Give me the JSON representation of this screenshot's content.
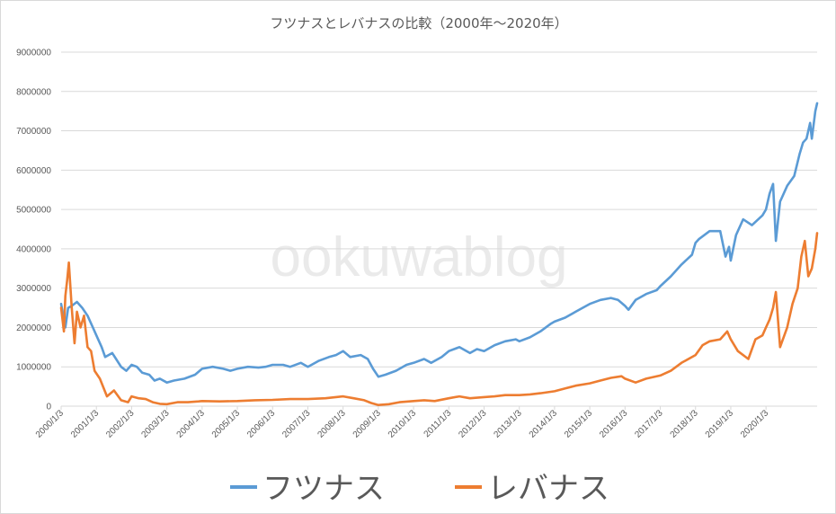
{
  "watermark": "ookuwablog",
  "chart_data": {
    "type": "line",
    "title": "フツナスとレバナスの比較（2000年～2020年）",
    "xlabel": "",
    "ylabel": "",
    "ylim": [
      0,
      9000000
    ],
    "yticks": [
      "0",
      "1000000",
      "2000000",
      "3000000",
      "4000000",
      "5000000",
      "6000000",
      "7000000",
      "8000000",
      "9000000"
    ],
    "yticks_values": [
      0,
      1000000,
      2000000,
      3000000,
      4000000,
      5000000,
      6000000,
      7000000,
      8000000,
      9000000
    ],
    "xlim": [
      2000.0,
      2021.45
    ],
    "xticks": [
      "2000/1/3",
      "2001/1/3",
      "2002/1/3",
      "2003/1/3",
      "2004/1/3",
      "2005/1/3",
      "2006/1/3",
      "2007/1/3",
      "2008/1/3",
      "2009/1/3",
      "2010/1/3",
      "2011/1/3",
      "2012/1/3",
      "2013/1/3",
      "2014/1/3",
      "2015/1/3",
      "2016/1/3",
      "2017/1/3",
      "2018/1/3",
      "2019/1/3",
      "2020/1/3"
    ],
    "grid": true,
    "legend_position": "bottom",
    "series": [
      {
        "name": "フツナス",
        "color": "#5b9bd5",
        "x": [
          2000.0,
          2000.12,
          2000.2,
          2000.3,
          2000.45,
          2000.6,
          2000.75,
          2000.9,
          2001.0,
          2001.15,
          2001.25,
          2001.45,
          2001.7,
          2001.85,
          2002.0,
          2002.15,
          2002.3,
          2002.5,
          2002.65,
          2002.8,
          2003.0,
          2003.2,
          2003.5,
          2003.8,
          2004.0,
          2004.3,
          2004.6,
          2004.8,
          2005.0,
          2005.3,
          2005.6,
          2005.8,
          2006.0,
          2006.3,
          2006.5,
          2006.8,
          2007.0,
          2007.3,
          2007.6,
          2007.8,
          2008.0,
          2008.2,
          2008.5,
          2008.7,
          2008.85,
          2009.0,
          2009.2,
          2009.5,
          2009.8,
          2010.0,
          2010.3,
          2010.5,
          2010.8,
          2011.0,
          2011.3,
          2011.6,
          2011.8,
          2012.0,
          2012.3,
          2012.6,
          2012.9,
          2013.0,
          2013.3,
          2013.6,
          2013.9,
          2014.0,
          2014.3,
          2014.6,
          2014.9,
          2015.0,
          2015.3,
          2015.6,
          2015.8,
          2016.0,
          2016.1,
          2016.3,
          2016.6,
          2016.9,
          2017.0,
          2017.3,
          2017.6,
          2017.9,
          2018.0,
          2018.1,
          2018.4,
          2018.7,
          2018.85,
          2018.95,
          2019.0,
          2019.15,
          2019.35,
          2019.6,
          2019.9,
          2020.0,
          2020.1,
          2020.2,
          2020.28,
          2020.4,
          2020.6,
          2020.8,
          2020.95,
          2021.05,
          2021.15,
          2021.25,
          2021.3,
          2021.4,
          2021.45
        ],
        "values": [
          2600000,
          2000000,
          2500000,
          2550000,
          2650000,
          2500000,
          2300000,
          2000000,
          1800000,
          1500000,
          1250000,
          1350000,
          1000000,
          900000,
          1050000,
          1000000,
          850000,
          800000,
          650000,
          700000,
          600000,
          650000,
          700000,
          800000,
          950000,
          1000000,
          950000,
          900000,
          950000,
          1000000,
          980000,
          1000000,
          1050000,
          1050000,
          1000000,
          1100000,
          1000000,
          1150000,
          1250000,
          1300000,
          1400000,
          1250000,
          1300000,
          1200000,
          950000,
          750000,
          800000,
          900000,
          1050000,
          1100000,
          1200000,
          1100000,
          1250000,
          1400000,
          1500000,
          1350000,
          1450000,
          1400000,
          1550000,
          1650000,
          1700000,
          1650000,
          1750000,
          1900000,
          2100000,
          2150000,
          2250000,
          2400000,
          2550000,
          2600000,
          2700000,
          2750000,
          2700000,
          2550000,
          2450000,
          2700000,
          2850000,
          2950000,
          3050000,
          3300000,
          3600000,
          3850000,
          4150000,
          4250000,
          4450000,
          4450000,
          3800000,
          4050000,
          3700000,
          4350000,
          4750000,
          4600000,
          4850000,
          5000000,
          5400000,
          5650000,
          4200000,
          5200000,
          5600000,
          5850000,
          6400000,
          6700000,
          6800000,
          7200000,
          6800000,
          7500000,
          7700000
        ]
      },
      {
        "name": "レバナス",
        "color": "#ed7d31",
        "x": [
          2000.0,
          2000.08,
          2000.12,
          2000.17,
          2000.22,
          2000.3,
          2000.38,
          2000.45,
          2000.55,
          2000.65,
          2000.75,
          2000.85,
          2000.95,
          2001.1,
          2001.3,
          2001.5,
          2001.7,
          2001.9,
          2002.0,
          2002.2,
          2002.4,
          2002.6,
          2002.8,
          2003.0,
          2003.3,
          2003.6,
          2003.9,
          2004.0,
          2004.5,
          2005.0,
          2005.5,
          2006.0,
          2006.5,
          2007.0,
          2007.5,
          2008.0,
          2008.3,
          2008.6,
          2008.8,
          2009.0,
          2009.3,
          2009.6,
          2010.0,
          2010.3,
          2010.6,
          2011.0,
          2011.3,
          2011.6,
          2012.0,
          2012.3,
          2012.6,
          2013.0,
          2013.3,
          2013.6,
          2014.0,
          2014.3,
          2014.6,
          2015.0,
          2015.3,
          2015.6,
          2015.9,
          2016.0,
          2016.3,
          2016.6,
          2017.0,
          2017.3,
          2017.6,
          2018.0,
          2018.2,
          2018.4,
          2018.7,
          2018.9,
          2019.0,
          2019.2,
          2019.5,
          2019.7,
          2019.9,
          2020.0,
          2020.1,
          2020.2,
          2020.28,
          2020.4,
          2020.6,
          2020.75,
          2020.9,
          2021.0,
          2021.1,
          2021.2,
          2021.3,
          2021.4,
          2021.45
        ],
        "values": [
          2500000,
          1900000,
          2800000,
          3200000,
          3650000,
          2500000,
          1600000,
          2400000,
          2000000,
          2300000,
          1500000,
          1400000,
          900000,
          700000,
          250000,
          400000,
          150000,
          100000,
          250000,
          200000,
          180000,
          100000,
          60000,
          50000,
          100000,
          100000,
          120000,
          130000,
          120000,
          130000,
          150000,
          160000,
          180000,
          180000,
          200000,
          250000,
          200000,
          150000,
          80000,
          30000,
          50000,
          100000,
          130000,
          150000,
          130000,
          200000,
          250000,
          200000,
          230000,
          250000,
          280000,
          280000,
          300000,
          330000,
          380000,
          450000,
          520000,
          580000,
          650000,
          720000,
          760000,
          700000,
          600000,
          700000,
          780000,
          900000,
          1100000,
          1300000,
          1550000,
          1650000,
          1700000,
          1900000,
          1700000,
          1400000,
          1200000,
          1700000,
          1800000,
          2000000,
          2200000,
          2500000,
          2900000,
          1500000,
          2000000,
          2600000,
          3000000,
          3800000,
          4200000,
          3300000,
          3500000,
          4000000,
          4400000
        ]
      }
    ]
  }
}
